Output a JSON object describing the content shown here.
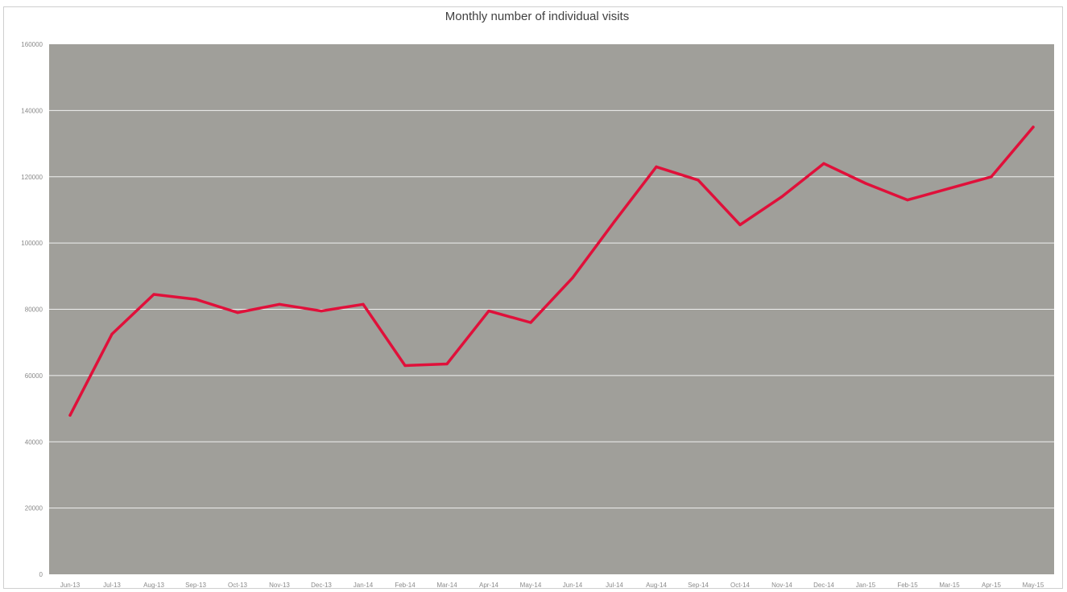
{
  "chart_data": {
    "type": "line",
    "title": "Monthly number of individual visits",
    "xlabel": "",
    "ylabel": "",
    "categories": [
      "Jun-13",
      "Jul-13",
      "Aug-13",
      "Sep-13",
      "Oct-13",
      "Nov-13",
      "Dec-13",
      "Jan-14",
      "Feb-14",
      "Mar-14",
      "Apr-14",
      "May-14",
      "Jun-14",
      "Jul-14",
      "Aug-14",
      "Sep-14",
      "Oct-14",
      "Nov-14",
      "Dec-14",
      "Jan-15",
      "Feb-15",
      "Mar-15",
      "Apr-15",
      "May-15"
    ],
    "y_ticks": [
      "0",
      "20000",
      "40000",
      "60000",
      "80000",
      "100000",
      "120000",
      "140000",
      "160000"
    ],
    "ylim": [
      0,
      160000
    ],
    "grid": true,
    "legend": "none",
    "series": [
      {
        "color": "#e0103a",
        "values": [
          48000,
          72500,
          84500,
          83000,
          79000,
          81500,
          79500,
          81500,
          63000,
          63500,
          79500,
          76000,
          89500,
          106500,
          123000,
          119000,
          105500,
          114000,
          124000,
          118000,
          113000,
          116500,
          120000,
          135000
        ]
      }
    ],
    "plot_background": "#a09f9a",
    "gridline_color": "#ffffff"
  }
}
